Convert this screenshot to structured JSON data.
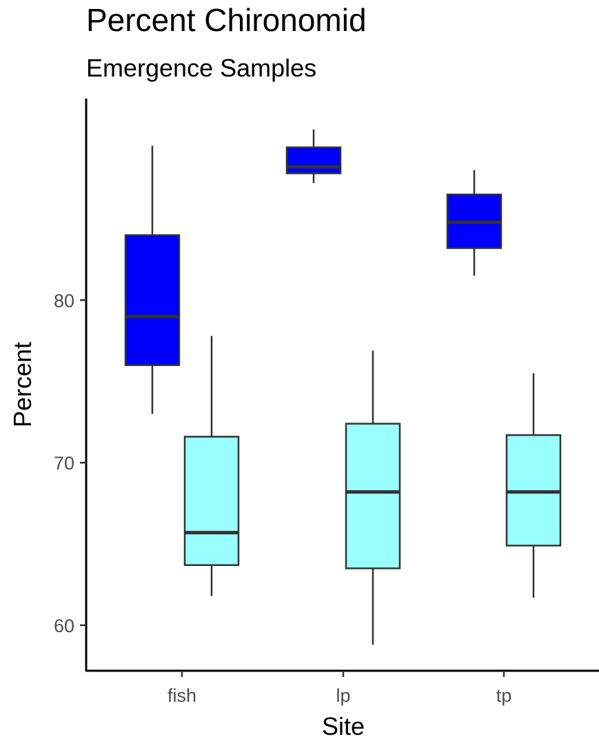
{
  "chart_data": {
    "type": "boxplot",
    "title": "Percent Chironomid",
    "subtitle": "Emergence Samples",
    "xlabel": "Site",
    "ylabel": "Percent",
    "categories": [
      "fish",
      "lp",
      "tp"
    ],
    "yticks": [
      60,
      70,
      80
    ],
    "ylim": [
      57.2,
      92.4
    ],
    "grid": false,
    "legend": "none",
    "series": [
      {
        "color": "#0000ff",
        "boxes": [
          {
            "category": "fish",
            "min": 73.0,
            "q1": 76.0,
            "median": 79.0,
            "q3": 84.0,
            "max": 89.5
          },
          {
            "category": "lp",
            "min": 87.2,
            "q1": 87.8,
            "median": 88.2,
            "q3": 89.4,
            "max": 90.5
          },
          {
            "category": "tp",
            "min": 81.5,
            "q1": 83.2,
            "median": 84.8,
            "q3": 86.5,
            "max": 88.0
          }
        ]
      },
      {
        "color": "#99ffff",
        "boxes": [
          {
            "category": "fish",
            "min": 61.8,
            "q1": 63.7,
            "median": 65.7,
            "q3": 71.6,
            "max": 77.8
          },
          {
            "category": "lp",
            "min": 58.8,
            "q1": 63.5,
            "median": 68.2,
            "q3": 72.4,
            "max": 76.9
          },
          {
            "category": "tp",
            "min": 61.7,
            "q1": 64.9,
            "median": 68.2,
            "q3": 71.7,
            "max": 75.5
          }
        ]
      }
    ]
  }
}
